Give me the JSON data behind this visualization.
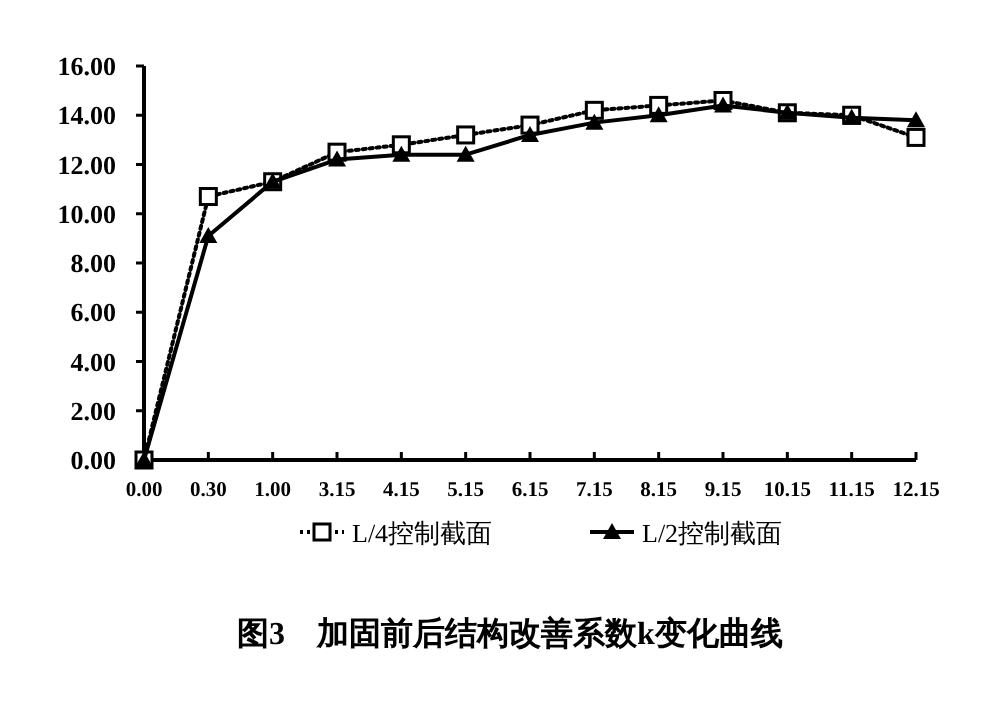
{
  "chart_data": {
    "type": "line",
    "title": "图3　加固前后结构改善系数k变化曲线",
    "categories": [
      "0.00",
      "0.30",
      "1.00",
      "3.15",
      "4.15",
      "5.15",
      "6.15",
      "7.15",
      "8.15",
      "9.15",
      "10.15",
      "11.15",
      "12.15"
    ],
    "series": [
      {
        "name": "L/4控制截面",
        "color": "#000000",
        "marker": "square",
        "line_style": "dotted",
        "values": [
          0,
          10.7,
          11.3,
          12.5,
          12.8,
          13.2,
          13.6,
          14.2,
          14.4,
          14.6,
          14.1,
          14.0,
          13.1
        ]
      },
      {
        "name": "L/2控制截面",
        "color": "#000000",
        "marker": "triangle",
        "line_style": "solid",
        "values": [
          0,
          9.1,
          11.3,
          12.2,
          12.4,
          12.4,
          13.2,
          13.7,
          14.0,
          14.4,
          14.1,
          13.9,
          13.8
        ]
      }
    ],
    "ylim": [
      0,
      16
    ],
    "yticks": [
      {
        "value": 0,
        "label": "0.00"
      },
      {
        "value": 2,
        "label": "2.00"
      },
      {
        "value": 4,
        "label": "4.00"
      },
      {
        "value": 6,
        "label": "6.00"
      },
      {
        "value": 8,
        "label": "8.00"
      },
      {
        "value": 10,
        "label": "10.00"
      },
      {
        "value": 12,
        "label": "12.00"
      },
      {
        "value": 14,
        "label": "14.00"
      },
      {
        "value": 16,
        "label": "16.00"
      }
    ],
    "grid": false,
    "legend": "bottom"
  }
}
